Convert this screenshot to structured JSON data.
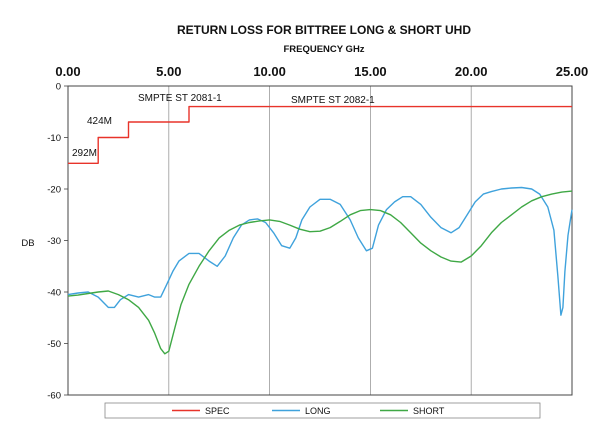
{
  "chart_data": {
    "type": "line",
    "title": "RETURN LOSS FOR BITTREE LONG & SHORT UHD",
    "xlabel": "FREQUENCY GHz",
    "ylabel": "DB",
    "xlim": [
      0,
      25
    ],
    "ylim": [
      -60,
      0
    ],
    "x_ticks": [
      "0.00",
      "5.00",
      "10.00",
      "15.00",
      "20.00",
      "25.00"
    ],
    "y_ticks": [
      "0",
      "-10",
      "-20",
      "-30",
      "-40",
      "-50",
      "-60"
    ],
    "x_axis_position": "top",
    "legend_position": "bottom",
    "colors": {
      "SPEC": "#e8332a",
      "LONG": "#3fa2dc",
      "SHORT": "#3fa845"
    },
    "annotations": [
      "292M",
      "424M",
      "SMPTE ST 2081-1",
      "SMPTE ST 2082-1"
    ],
    "series": [
      {
        "name": "SPEC",
        "x": [
          0,
          1.5,
          1.5,
          3,
          3,
          6,
          6,
          25
        ],
        "y": [
          -15,
          -15,
          -10,
          -10,
          -7,
          -7,
          -4,
          -4
        ]
      },
      {
        "name": "LONG",
        "x": [
          0,
          0.5,
          1,
          1.5,
          2,
          2.3,
          2.6,
          3,
          3.5,
          4,
          4.3,
          4.6,
          4.9,
          5.2,
          5.5,
          6,
          6.5,
          7,
          7.4,
          7.8,
          8.2,
          8.6,
          9,
          9.4,
          9.8,
          10.2,
          10.6,
          11,
          11.3,
          11.6,
          12,
          12.5,
          13,
          13.5,
          14,
          14.4,
          14.8,
          15.1,
          15.4,
          15.8,
          16.2,
          16.6,
          17,
          17.5,
          18,
          18.5,
          19,
          19.4,
          19.8,
          20.2,
          20.6,
          21,
          21.5,
          22,
          22.5,
          23,
          23.4,
          23.8,
          24.1,
          24.3,
          24.45,
          24.55,
          24.65,
          24.8,
          25
        ],
        "y": [
          -40.5,
          -40.2,
          -40,
          -41,
          -43,
          -43,
          -41.5,
          -40.5,
          -41,
          -40.5,
          -41,
          -41,
          -38.5,
          -36,
          -34,
          -32.5,
          -32.5,
          -34,
          -35,
          -33,
          -29.5,
          -27,
          -26,
          -25.8,
          -26.5,
          -28.5,
          -31,
          -31.5,
          -29.5,
          -26,
          -23.5,
          -22,
          -22,
          -23,
          -26,
          -29.5,
          -32,
          -31.5,
          -27,
          -24,
          -22.5,
          -21.5,
          -21.5,
          -23,
          -25.5,
          -27.5,
          -28.5,
          -27.5,
          -25,
          -22.5,
          -21,
          -20.5,
          -20,
          -19.8,
          -19.7,
          -20,
          -21,
          -23.5,
          -28,
          -37,
          -44.5,
          -43,
          -36,
          -29,
          -24
        ]
      },
      {
        "name": "SHORT",
        "x": [
          0,
          0.5,
          1,
          1.5,
          2,
          2.5,
          3,
          3.5,
          4,
          4.3,
          4.6,
          4.8,
          5,
          5.3,
          5.6,
          6,
          6.5,
          7,
          7.5,
          8,
          8.5,
          9,
          9.5,
          10,
          10.5,
          11,
          11.5,
          12,
          12.5,
          13,
          13.5,
          14,
          14.5,
          15,
          15.5,
          16,
          16.5,
          17,
          17.5,
          18,
          18.5,
          19,
          19.5,
          20,
          20.5,
          21,
          21.5,
          22,
          22.5,
          23,
          23.5,
          24,
          24.5,
          25
        ],
        "y": [
          -40.8,
          -40.6,
          -40.3,
          -40,
          -39.8,
          -40.5,
          -41.5,
          -43,
          -45.5,
          -48,
          -51,
          -52,
          -51.5,
          -47,
          -42.5,
          -38.5,
          -35,
          -32,
          -29.5,
          -28,
          -27,
          -26.5,
          -26.2,
          -26,
          -26.3,
          -27,
          -27.8,
          -28.3,
          -28.2,
          -27.5,
          -26.3,
          -25,
          -24.2,
          -24,
          -24.2,
          -25,
          -26.5,
          -28.5,
          -30.5,
          -32,
          -33.2,
          -34,
          -34.2,
          -33,
          -31,
          -28.5,
          -26.5,
          -25,
          -23.5,
          -22.3,
          -21.5,
          -21,
          -20.6,
          -20.4
        ]
      }
    ]
  }
}
